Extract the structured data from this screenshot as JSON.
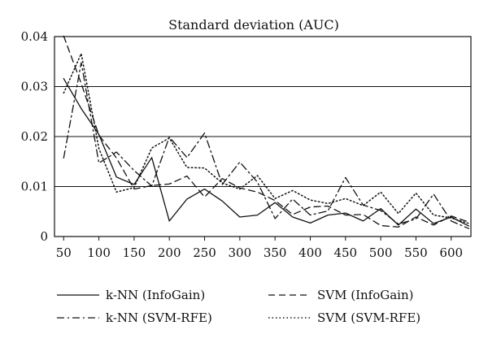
{
  "chart_data": {
    "type": "line",
    "title": "Standard deviation (AUC)",
    "xlabel": "",
    "ylabel": "",
    "x": [
      50,
      75,
      100,
      125,
      150,
      175,
      200,
      225,
      250,
      275,
      300,
      325,
      350,
      375,
      400,
      425,
      450,
      475,
      500,
      525,
      550,
      575,
      600,
      625
    ],
    "x_ticks": [
      "50",
      "100",
      "150",
      "200",
      "250",
      "300",
      "350",
      "400",
      "450",
      "500",
      "550",
      "600"
    ],
    "x_tick_values": [
      50,
      100,
      150,
      200,
      250,
      300,
      350,
      400,
      450,
      500,
      550,
      600
    ],
    "xlim": [
      37,
      628
    ],
    "y_ticks": [
      "0",
      "0.01",
      "0.02",
      "0.03",
      "0.04"
    ],
    "y_tick_values": [
      0,
      0.01,
      0.02,
      0.03,
      0.04
    ],
    "ylim": [
      0,
      0.04
    ],
    "grid": "horizontal",
    "legend_position": "bottom",
    "series": [
      {
        "name": "k-NN (InfoGain)",
        "style": "solid",
        "values": [
          0.0316,
          0.0256,
          0.0204,
          0.0119,
          0.0104,
          0.0158,
          0.0031,
          0.0075,
          0.0095,
          0.0071,
          0.0039,
          0.0043,
          0.0068,
          0.0039,
          0.0027,
          0.0043,
          0.0047,
          0.0031,
          0.0056,
          0.0023,
          0.0055,
          0.0026,
          0.0039,
          0.0021
        ]
      },
      {
        "name": "SVM (InfoGain)",
        "style": "dashed",
        "values": [
          0.0401,
          0.0306,
          0.0203,
          0.0157,
          0.0095,
          0.0102,
          0.0105,
          0.0121,
          0.0079,
          0.0116,
          0.0097,
          0.0089,
          0.0072,
          0.0044,
          0.0059,
          0.0061,
          0.0043,
          0.0044,
          0.0022,
          0.0019,
          0.0039,
          0.0023,
          0.0041,
          0.0029
        ]
      },
      {
        "name": "k-NN (SVM-RFE)",
        "style": "dashdot",
        "values": [
          0.0157,
          0.0348,
          0.0147,
          0.0169,
          0.0132,
          0.0101,
          0.0199,
          0.0158,
          0.0207,
          0.0104,
          0.0149,
          0.0109,
          0.0036,
          0.0075,
          0.0043,
          0.0051,
          0.0118,
          0.0063,
          0.0052,
          0.0025,
          0.0035,
          0.0085,
          0.0031,
          0.0016
        ]
      },
      {
        "name": "SVM (SVM-RFE)",
        "style": "dotted",
        "values": [
          0.0287,
          0.0366,
          0.0176,
          0.0089,
          0.0098,
          0.0177,
          0.0197,
          0.0138,
          0.0137,
          0.0107,
          0.0095,
          0.0122,
          0.0076,
          0.0092,
          0.0073,
          0.0066,
          0.0076,
          0.0062,
          0.0089,
          0.0046,
          0.0087,
          0.0043,
          0.0037,
          0.0026
        ]
      }
    ]
  }
}
